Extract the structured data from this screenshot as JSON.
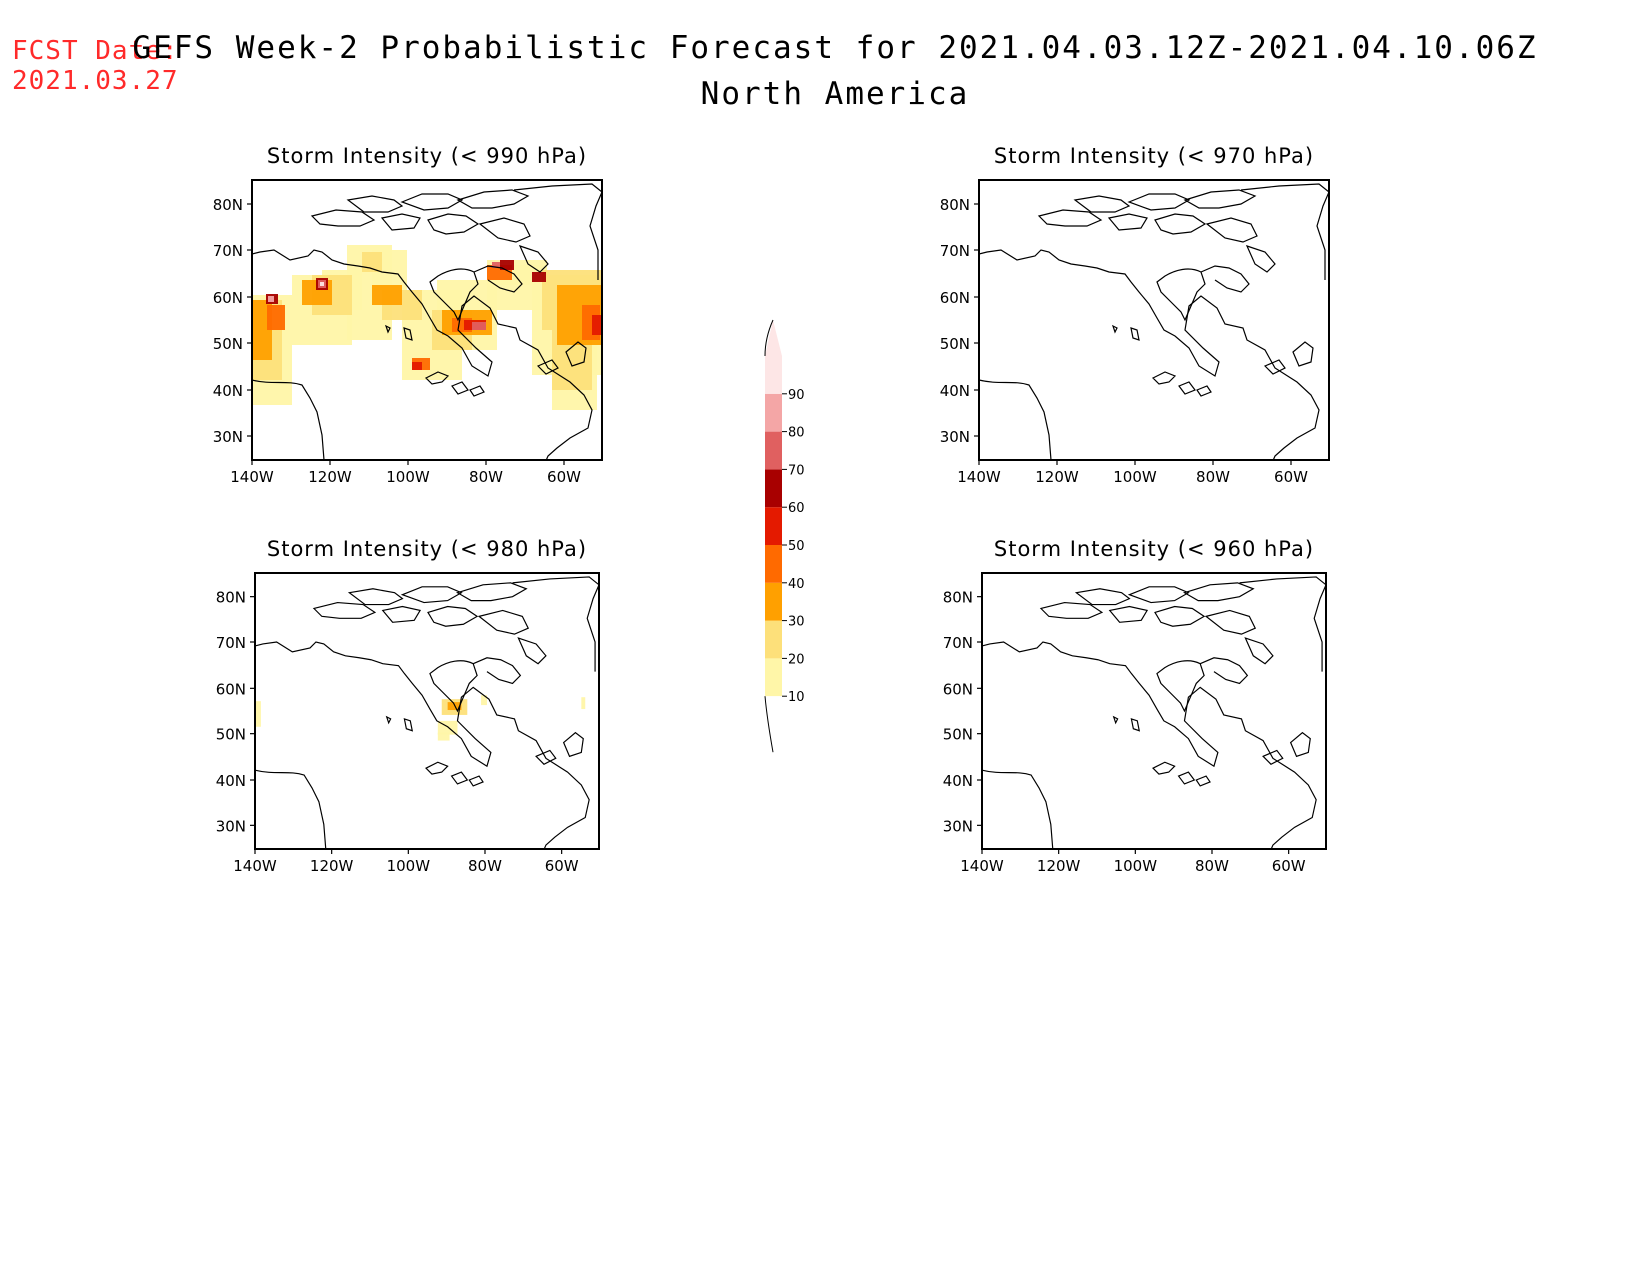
{
  "header": {
    "fcst_label": "FCST Date:",
    "fcst_date": "2021.03.27",
    "title": "GEFS Week-2 Probabilistic Forecast for 2021.04.03.12Z-2021.04.10.06Z",
    "subtitle": "North America"
  },
  "axes": {
    "lat_ticks": [
      "80N",
      "70N",
      "60N",
      "50N",
      "40N",
      "30N"
    ],
    "lon_ticks": [
      "140W",
      "120W",
      "100W",
      "80W",
      "60W"
    ]
  },
  "panels": [
    {
      "id": "p990",
      "title": "Storm Intensity (< 990 hPa)"
    },
    {
      "id": "p970",
      "title": "Storm Intensity (< 970 hPa)"
    },
    {
      "id": "p980",
      "title": "Storm Intensity (< 980 hPa)"
    },
    {
      "id": "p960",
      "title": "Storm Intensity (< 960 hPa)"
    }
  ],
  "colorbar": {
    "levels": [
      "10",
      "20",
      "30",
      "40",
      "50",
      "60",
      "70",
      "80",
      "90"
    ],
    "colors": [
      "#fff6a8",
      "#fde07a",
      "#ffa000",
      "#ff6a00",
      "#e41a00",
      "#a80000",
      "#e06060",
      "#f4a6a6",
      "#fde6e6"
    ]
  }
}
